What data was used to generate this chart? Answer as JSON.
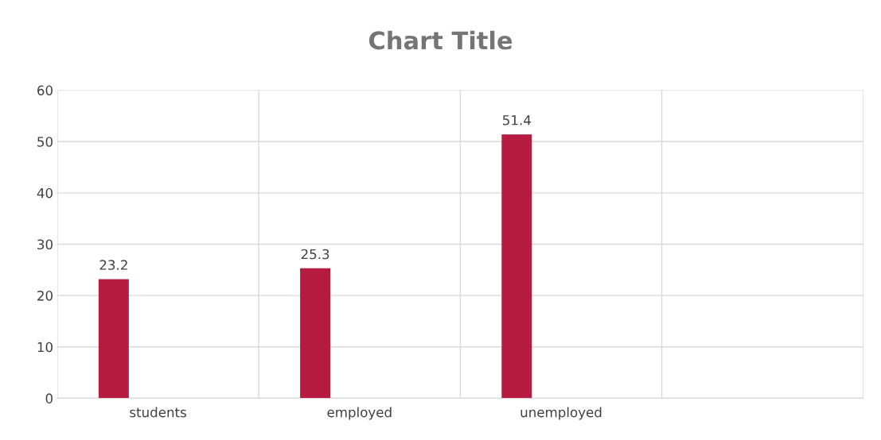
{
  "chart_data": {
    "type": "bar",
    "title": "Chart Title",
    "categories": [
      "students",
      "employed",
      "unemployed",
      null
    ],
    "series": [
      {
        "color": "#b51c40",
        "values": [
          23.2,
          25.3,
          51.4,
          null
        ]
      }
    ],
    "ylim": [
      0,
      60
    ],
    "yticks": [
      0,
      10,
      20,
      30,
      40,
      50,
      60
    ],
    "grid": true,
    "data_labels": true
  }
}
